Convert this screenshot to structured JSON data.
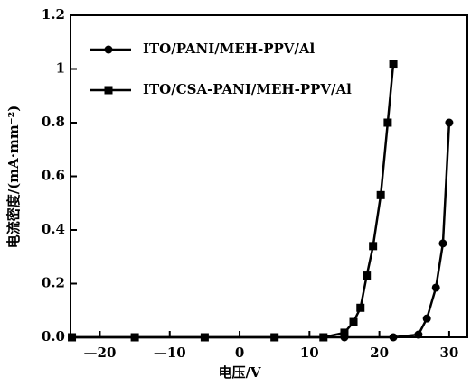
{
  "chart_data": {
    "type": "line",
    "x_label": "电压/V",
    "y_label": "电流密度/(mA·mm⁻²)",
    "xlim": [
      -24.2,
      32.6
    ],
    "ylim": [
      0,
      1.2
    ],
    "xticks": [
      {
        "value": -20,
        "label": "—20"
      },
      {
        "value": -10,
        "label": "—10"
      },
      0,
      10,
      20,
      30
    ],
    "yticks": [
      {
        "value": 0,
        "label": "0.0"
      },
      0.2,
      0.4,
      0.6,
      0.8,
      1.0,
      1.2
    ],
    "legend": "upper left",
    "series": [
      {
        "name": "ITO/PANI/MEH-PPV/Al",
        "color": "#000000",
        "marker": "circle",
        "x": [
          -24,
          -15,
          -5,
          5,
          15,
          22,
          25.6,
          26.8,
          28.1,
          29.1,
          30.0
        ],
        "values": [
          0,
          0,
          0,
          0,
          0,
          0,
          0.01,
          0.07,
          0.185,
          0.35,
          0.8
        ]
      },
      {
        "name": "ITO/CSA-PANI/MEH-PPV/Al",
        "color": "#000000",
        "marker": "square",
        "x": [
          -24,
          -15,
          -5,
          5,
          12,
          15.0,
          16.3,
          17.3,
          18.2,
          19.1,
          20.2,
          21.2,
          22.0
        ],
        "values": [
          0,
          0,
          0,
          0,
          0,
          0.017,
          0.057,
          0.11,
          0.23,
          0.34,
          0.53,
          0.8,
          1.02
        ]
      }
    ]
  }
}
